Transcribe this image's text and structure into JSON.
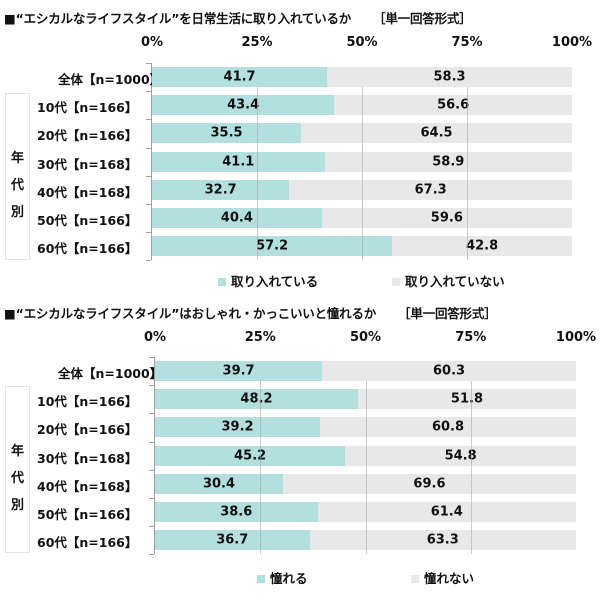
{
  "chart_data": [
    {
      "type": "bar",
      "orientation": "horizontal-stacked-100",
      "title": "■“エシカルなライフスタイル”を日常生活に取り入れているか",
      "format_note": "［単一回答形式］",
      "xlim": [
        0,
        100
      ],
      "tick_labels": [
        "0%",
        "25%",
        "50%",
        "75%",
        "100%"
      ],
      "group_label": "年代別",
      "categories": [
        "全体【n=1000】",
        "10代【n=166】",
        "20代【n=166】",
        "30代【n=168】",
        "40代【n=168】",
        "50代【n=166】",
        "60代【n=166】"
      ],
      "series": [
        {
          "name": "取り入れている",
          "color": "#b3dfdf",
          "values": [
            41.7,
            43.4,
            35.5,
            41.1,
            32.7,
            40.4,
            57.2
          ]
        },
        {
          "name": "取り入れていない",
          "color": "#e8e8e8",
          "values": [
            58.3,
            56.6,
            64.5,
            58.9,
            67.3,
            59.6,
            42.8
          ]
        }
      ],
      "legend": "bottom",
      "grid": true
    },
    {
      "type": "bar",
      "orientation": "horizontal-stacked-100",
      "title": "■“エシカルなライフスタイル”はおしゃれ・かっこいいと憧れるか",
      "format_note": "［単一回答形式］",
      "xlim": [
        0,
        100
      ],
      "tick_labels": [
        "0%",
        "25%",
        "50%",
        "75%",
        "100%"
      ],
      "group_label": "年代別",
      "categories": [
        "全体【n=1000】",
        "10代【n=166】",
        "20代【n=166】",
        "30代【n=168】",
        "40代【n=168】",
        "50代【n=166】",
        "60代【n=166】"
      ],
      "series": [
        {
          "name": "憧れる",
          "color": "#b3dfdf",
          "values": [
            39.7,
            48.2,
            39.2,
            45.2,
            30.4,
            38.6,
            36.7
          ]
        },
        {
          "name": "憧れない",
          "color": "#e8e8e8",
          "values": [
            60.3,
            51.8,
            60.8,
            54.8,
            69.6,
            61.4,
            63.3
          ]
        }
      ],
      "legend": "bottom",
      "grid": true
    }
  ]
}
